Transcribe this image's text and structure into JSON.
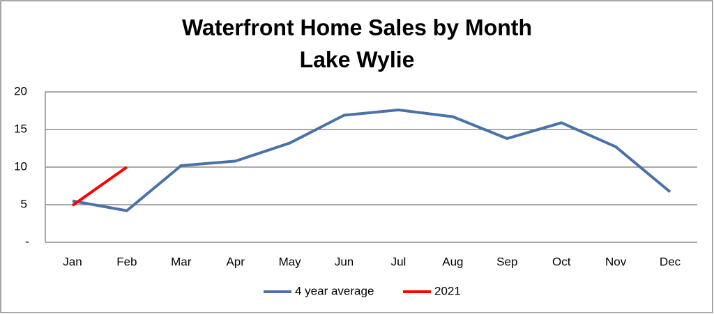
{
  "chart_data": {
    "type": "line",
    "title": "Waterfront Home Sales by Month",
    "subtitle": "Lake Wylie",
    "categories": [
      "Jan",
      "Feb",
      "Mar",
      "Apr",
      "May",
      "Jun",
      "Jul",
      "Aug",
      "Sep",
      "Oct",
      "Nov",
      "Dec"
    ],
    "series": [
      {
        "name": "4 year average",
        "color": "#4a72a8",
        "values": [
          5.5,
          4.2,
          10.2,
          10.8,
          13.2,
          16.9,
          17.6,
          16.7,
          13.8,
          15.9,
          12.7,
          6.7
        ]
      },
      {
        "name": "2021",
        "color": "#ff0000",
        "values": [
          4.9,
          10.0,
          null,
          null,
          null,
          null,
          null,
          null,
          null,
          null,
          null,
          null
        ]
      }
    ],
    "ylim": [
      0,
      20
    ],
    "yticks": [
      {
        "value": 0,
        "label": "-"
      },
      5,
      10,
      15,
      20
    ],
    "grid": true,
    "legend": "bottom"
  }
}
